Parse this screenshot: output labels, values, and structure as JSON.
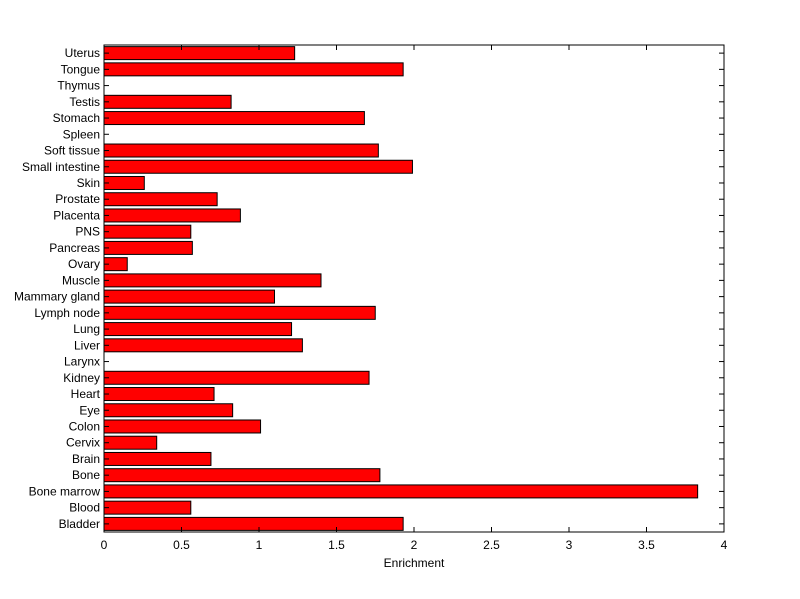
{
  "chart_data": {
    "type": "bar",
    "orientation": "horizontal",
    "title": "",
    "xlabel": "Enrichment",
    "ylabel": "",
    "xlim": [
      0,
      4
    ],
    "xticks": [
      0,
      0.5,
      1,
      1.5,
      2,
      2.5,
      3,
      3.5,
      4
    ],
    "xtick_labels": [
      "0",
      "0.5",
      "1",
      "1.5",
      "2",
      "2.5",
      "3",
      "3.5",
      "4"
    ],
    "categories": [
      "Bladder",
      "Blood",
      "Bone marrow",
      "Bone",
      "Brain",
      "Cervix",
      "Colon",
      "Eye",
      "Heart",
      "Kidney",
      "Larynx",
      "Liver",
      "Lung",
      "Lymph node",
      "Mammary gland",
      "Muscle",
      "Ovary",
      "Pancreas",
      "PNS",
      "Placenta",
      "Prostate",
      "Skin",
      "Small intestine",
      "Soft tissue",
      "Spleen",
      "Stomach",
      "Testis",
      "Thymus",
      "Tongue",
      "Uterus"
    ],
    "values": [
      1.93,
      0.56,
      3.83,
      1.78,
      0.69,
      0.34,
      1.01,
      0.83,
      0.71,
      1.71,
      0,
      1.28,
      1.21,
      1.75,
      1.1,
      1.4,
      0.15,
      0.57,
      0.56,
      0.88,
      0.73,
      0.26,
      1.99,
      1.77,
      0,
      1.68,
      0.82,
      0,
      1.93,
      1.23
    ],
    "bar_color": "#ff0000",
    "bar_edge_color": "#000000",
    "grid": false,
    "legend": false
  }
}
